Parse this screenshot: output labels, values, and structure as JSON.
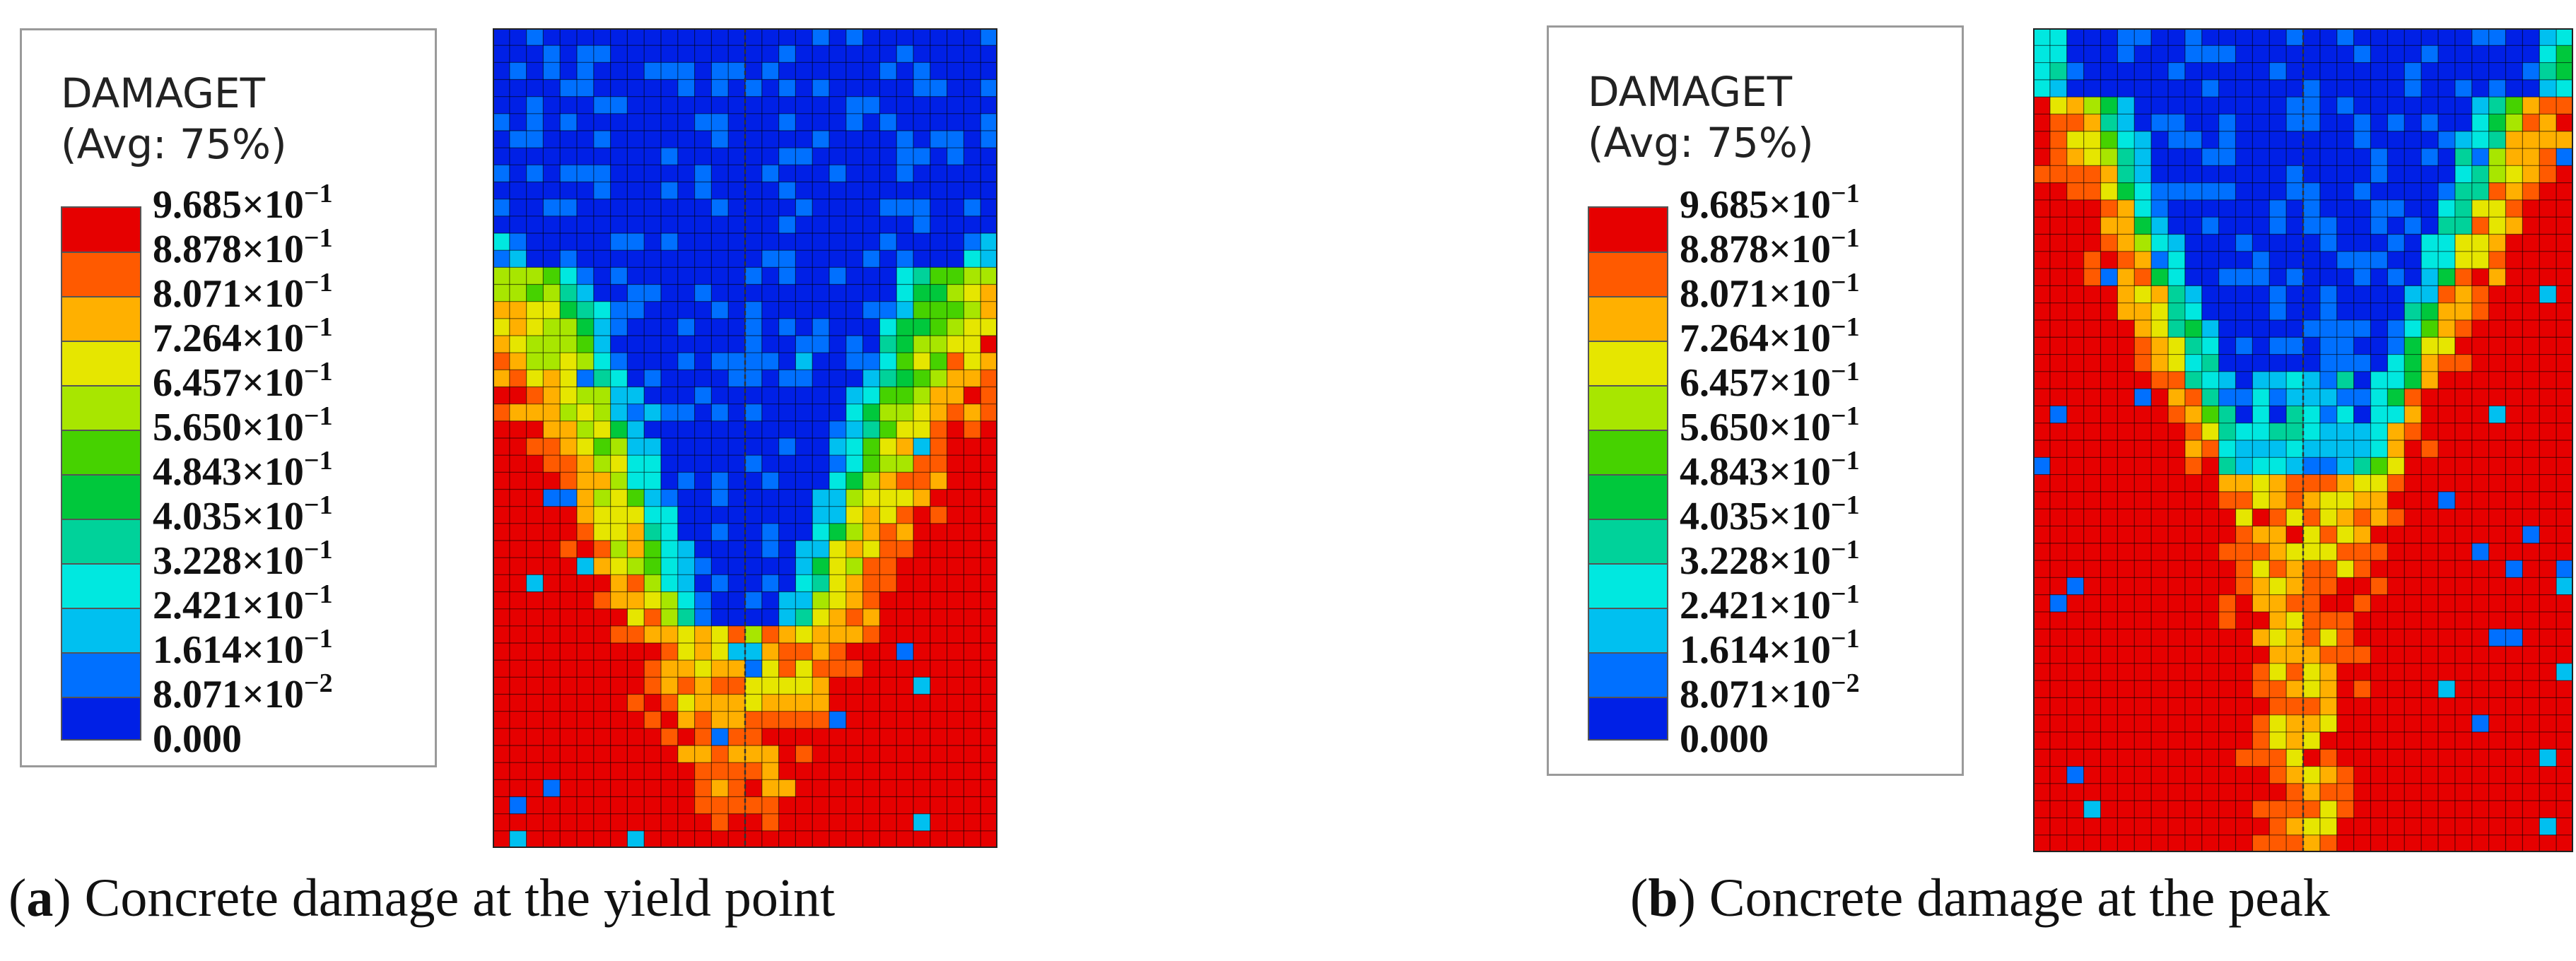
{
  "legend": {
    "title": "DAMAGET",
    "subtitle": "(Avg: 75%)",
    "levels": [
      {
        "mantissa": "9.685×10",
        "exp": "−1"
      },
      {
        "mantissa": "8.878×10",
        "exp": "−1"
      },
      {
        "mantissa": "8.071×10",
        "exp": "−1"
      },
      {
        "mantissa": "7.264×10",
        "exp": "−1"
      },
      {
        "mantissa": "6.457×10",
        "exp": "−1"
      },
      {
        "mantissa": "5.650×10",
        "exp": "−1"
      },
      {
        "mantissa": "4.843×10",
        "exp": "−1"
      },
      {
        "mantissa": "4.035×10",
        "exp": "−1"
      },
      {
        "mantissa": "3.228×10",
        "exp": "−1"
      },
      {
        "mantissa": "2.421×10",
        "exp": "−1"
      },
      {
        "mantissa": "1.614×10",
        "exp": "−1"
      },
      {
        "mantissa": "8.071×10",
        "exp": "−2"
      },
      {
        "mantissa": "0.000",
        "exp": ""
      }
    ],
    "colors": [
      "#e60000",
      "#ff5a00",
      "#ffb000",
      "#e6e600",
      "#a8e600",
      "#46d200",
      "#00c83c",
      "#00d29a",
      "#00e8e0",
      "#00c0f0",
      "#0070ff",
      "#0020e6"
    ]
  },
  "panels": [
    {
      "letter": "a",
      "caption_prefix": "(",
      "caption_suffix": ") Concrete damage at the yield point"
    },
    {
      "letter": "b",
      "caption_prefix": "(",
      "caption_suffix": ") Concrete damage at the peak"
    }
  ]
}
